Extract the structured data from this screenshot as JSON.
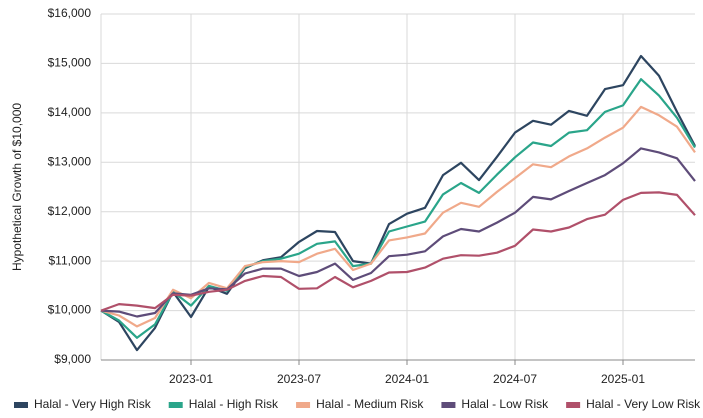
{
  "chart_data": {
    "type": "line",
    "y_label": "Hypothetical Growth of $10,000",
    "x": [
      "2022-08",
      "2022-09",
      "2022-10",
      "2022-11",
      "2022-12",
      "2023-01",
      "2023-02",
      "2023-03",
      "2023-04",
      "2023-05",
      "2023-06",
      "2023-07",
      "2023-08",
      "2023-09",
      "2023-10",
      "2023-11",
      "2023-12",
      "2024-01",
      "2024-02",
      "2024-03",
      "2024-04",
      "2024-05",
      "2024-06",
      "2024-07",
      "2024-08",
      "2024-09",
      "2024-10",
      "2024-11",
      "2024-12",
      "2025-01",
      "2025-02",
      "2025-03",
      "2025-04",
      "2025-05"
    ],
    "xticks": [
      "2023-01",
      "2023-07",
      "2024-01",
      "2024-07",
      "2025-01"
    ],
    "ylim": [
      9000,
      16000
    ],
    "yticks": [
      {
        "value": 9000,
        "label": "$9,000"
      },
      {
        "value": 10000,
        "label": "$10,000"
      },
      {
        "value": 11000,
        "label": "$11,000"
      },
      {
        "value": 12000,
        "label": "$12,000"
      },
      {
        "value": 13000,
        "label": "$13,000"
      },
      {
        "value": 14000,
        "label": "$14,000"
      },
      {
        "value": 15000,
        "label": "$15,000"
      },
      {
        "value": 16000,
        "label": "$16,000"
      }
    ],
    "grid": true,
    "legend": "bottom",
    "series": [
      {
        "name": "Halal - Very High Risk",
        "color": "#2d4560",
        "values": [
          10000,
          9770,
          9200,
          9650,
          10380,
          9870,
          10480,
          10340,
          10860,
          11020,
          11080,
          11390,
          11610,
          11590,
          11000,
          10950,
          11750,
          11960,
          12080,
          12740,
          12990,
          12640,
          13110,
          13600,
          13840,
          13760,
          14040,
          13940,
          14480,
          14560,
          15150,
          14750,
          14020,
          13330
        ]
      },
      {
        "name": "Halal - High Risk",
        "color": "#2aa58a",
        "values": [
          10000,
          9800,
          9450,
          9720,
          10380,
          10100,
          10500,
          10400,
          10880,
          11000,
          11050,
          11150,
          11350,
          11400,
          10900,
          10950,
          11600,
          11700,
          11800,
          12350,
          12580,
          12380,
          12750,
          13100,
          13400,
          13330,
          13600,
          13650,
          14020,
          14150,
          14680,
          14350,
          13900,
          13300
        ]
      },
      {
        "name": "Halal - Medium Risk",
        "color": "#f0a98a",
        "values": [
          10000,
          9900,
          9680,
          9850,
          10420,
          10250,
          10560,
          10450,
          10900,
          10980,
          11000,
          10980,
          11150,
          11250,
          10820,
          10950,
          11420,
          11480,
          11560,
          11980,
          12180,
          12100,
          12400,
          12680,
          12960,
          12900,
          13120,
          13280,
          13500,
          13700,
          14120,
          13950,
          13720,
          13200
        ]
      },
      {
        "name": "Halal - Low Risk",
        "color": "#5e4c79",
        "values": [
          10000,
          9980,
          9880,
          9950,
          10350,
          10320,
          10450,
          10430,
          10750,
          10850,
          10850,
          10700,
          10780,
          10950,
          10620,
          10760,
          11100,
          11130,
          11200,
          11500,
          11650,
          11600,
          11780,
          11980,
          12300,
          12250,
          12420,
          12580,
          12740,
          12980,
          13280,
          13200,
          13080,
          12620
        ]
      },
      {
        "name": "Halal - Very Low Risk",
        "color": "#b0506a",
        "values": [
          10000,
          10130,
          10100,
          10050,
          10320,
          10300,
          10380,
          10420,
          10600,
          10700,
          10680,
          10440,
          10450,
          10680,
          10470,
          10600,
          10770,
          10780,
          10870,
          11050,
          11120,
          11110,
          11170,
          11310,
          11640,
          11600,
          11680,
          11850,
          11940,
          12240,
          12380,
          12390,
          12340,
          11930
        ]
      }
    ]
  }
}
